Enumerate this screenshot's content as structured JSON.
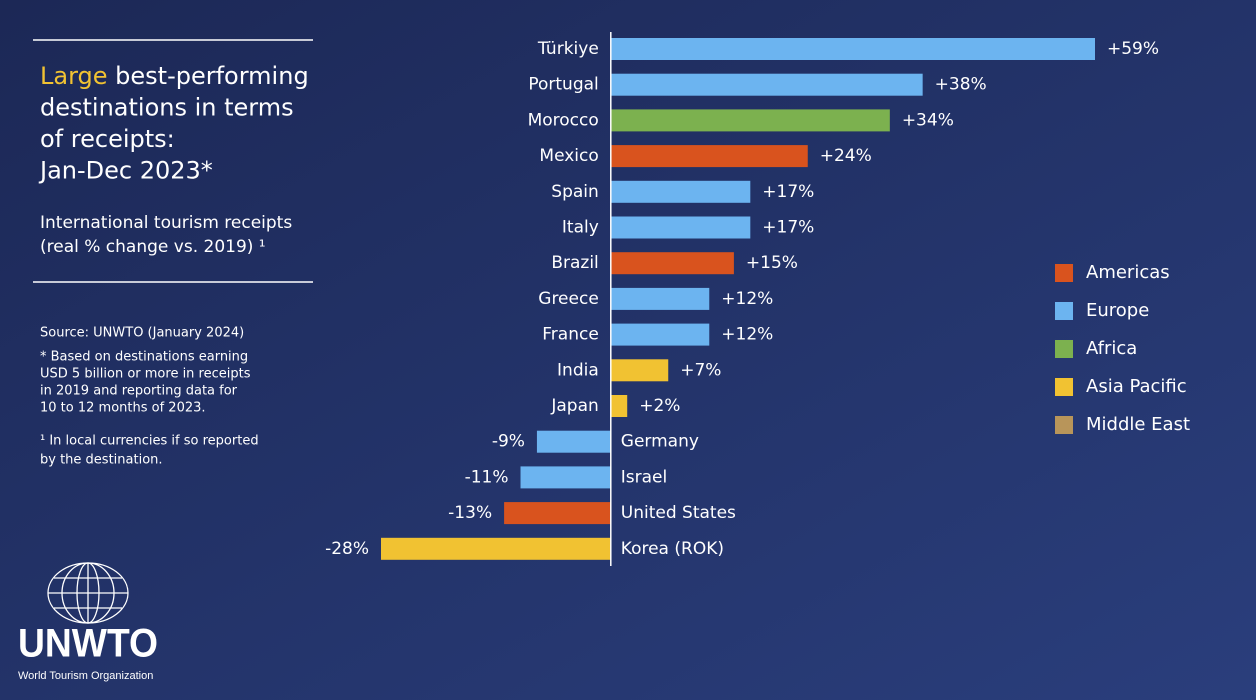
{
  "title": {
    "highlight": "Large",
    "lines": [
      " best-performing",
      "destinations in terms",
      "of receipts:",
      "Jan-Dec 2023*"
    ]
  },
  "subtitle": [
    "International tourism receipts",
    "(real % change vs. 2019) ¹"
  ],
  "source": "Source: UNWTO (January 2024)",
  "note": [
    "* Based on destinations earning",
    "USD 5 billion or more in receipts",
    "in 2019 and reporting data for",
    "10 to 12 months of 2023."
  ],
  "footnote": [
    "¹ In local currencies if so reported",
    "by the destination."
  ],
  "logo": {
    "name": "UNWTO",
    "full_name": "World Tourism Organization"
  },
  "chart_data": {
    "type": "bar",
    "orientation": "horizontal",
    "categories": [
      "Türkiye",
      "Portugal",
      "Morocco",
      "Mexico",
      "Spain",
      "Italy",
      "Brazil",
      "Greece",
      "France",
      "India",
      "Japan",
      "Germany",
      "Israel",
      "United States",
      "Korea (ROK)"
    ],
    "values": [
      59,
      38,
      34,
      24,
      17,
      17,
      15,
      12,
      12,
      7,
      2,
      -9,
      -11,
      -13,
      -28
    ],
    "value_labels": [
      "+59%",
      "+38%",
      "+34%",
      "+24%",
      "+17%",
      "+17%",
      "+15%",
      "+12%",
      "+12%",
      "+7%",
      "+2%",
      "-9%",
      "-11%",
      "-13%",
      "-28%"
    ],
    "colors": [
      "#6cb4f0",
      "#6cb4f0",
      "#7cb14f",
      "#d9531e",
      "#6cb4f0",
      "#6cb4f0",
      "#d9531e",
      "#6cb4f0",
      "#6cb4f0",
      "#f1c232",
      "#f1c232",
      "#6cb4f0",
      "#6cb4f0",
      "#d9531e",
      "#f1c232"
    ],
    "legend": [
      {
        "name": "Americas",
        "color": "#d9531e"
      },
      {
        "name": "Europe",
        "color": "#6cb4f0"
      },
      {
        "name": "Africa",
        "color": "#7cb14f"
      },
      {
        "name": "Asia Pacific",
        "color": "#f1c232"
      },
      {
        "name": "Middle East",
        "color": "#b8955a"
      }
    ]
  }
}
